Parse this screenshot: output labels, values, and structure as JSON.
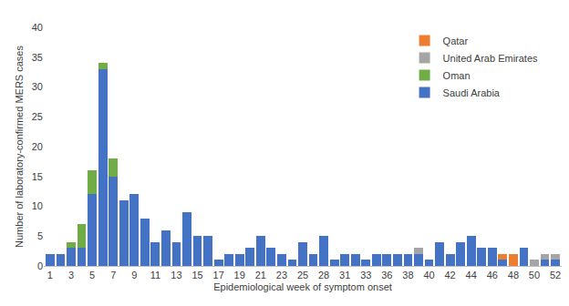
{
  "chart_data": {
    "type": "bar",
    "stacked": true,
    "x_label": "Epidemiological week of symptom onset",
    "y_label": "Number of laboratory-confirmed MERS cases",
    "categories": [
      "1",
      null,
      "3",
      null,
      "5",
      null,
      "7",
      null,
      "9",
      null,
      "11",
      null,
      "13",
      null,
      "15",
      null,
      "17",
      null,
      "19",
      null,
      "21",
      null,
      "23",
      null,
      "25",
      null,
      "28",
      null,
      "31",
      null,
      "33",
      null,
      "36",
      null,
      "38",
      null,
      "40",
      null,
      "42",
      null,
      "44",
      null,
      "46",
      null,
      "48",
      null,
      "50",
      null,
      "52"
    ],
    "series": [
      {
        "name": "Saudi Arabia",
        "color": "#4472c4",
        "values": [
          2,
          2,
          3,
          3,
          12,
          33,
          15,
          11,
          12,
          8,
          4,
          6,
          4,
          9,
          5,
          5,
          1,
          2,
          2,
          3,
          5,
          3,
          2,
          1,
          4,
          2,
          5,
          1,
          2,
          2,
          1,
          2,
          2,
          2,
          2,
          2,
          1,
          4,
          2,
          4,
          5,
          3,
          3,
          1,
          0,
          3,
          0,
          1,
          1
        ]
      },
      {
        "name": "Oman",
        "color": "#70ad47",
        "values": [
          0,
          0,
          1,
          4,
          4,
          1,
          3,
          0,
          0,
          0,
          0,
          0,
          0,
          0,
          0,
          0,
          0,
          0,
          0,
          0,
          0,
          0,
          0,
          0,
          0,
          0,
          0,
          0,
          0,
          0,
          0,
          0,
          0,
          0,
          0,
          0,
          0,
          0,
          0,
          0,
          0,
          0,
          0,
          0,
          0,
          0,
          0,
          0,
          0
        ]
      },
      {
        "name": "United Arab Emirates",
        "color": "#a5a5a5",
        "values": [
          0,
          0,
          0,
          0,
          0,
          0,
          0,
          0,
          0,
          0,
          0,
          0,
          0,
          0,
          0,
          0,
          0,
          0,
          0,
          0,
          0,
          0,
          0,
          0,
          0,
          0,
          0,
          0,
          0,
          0,
          0,
          0,
          0,
          0,
          0,
          1,
          0,
          0,
          0,
          0,
          0,
          0,
          0,
          0,
          0,
          0,
          1,
          1,
          1
        ]
      },
      {
        "name": "Qatar",
        "color": "#ed7d31",
        "values": [
          0,
          0,
          0,
          0,
          0,
          0,
          0,
          0,
          0,
          0,
          0,
          0,
          0,
          0,
          0,
          0,
          0,
          0,
          0,
          0,
          0,
          0,
          0,
          0,
          0,
          0,
          0,
          0,
          0,
          0,
          0,
          0,
          0,
          0,
          0,
          0,
          0,
          0,
          0,
          0,
          0,
          0,
          0,
          1,
          2,
          0,
          0,
          0,
          0
        ]
      }
    ],
    "ylim": [
      0,
      40
    ],
    "yticks": [
      0,
      5,
      10,
      15,
      20,
      25,
      30,
      35,
      40
    ],
    "grid": false,
    "legend": "top right"
  }
}
